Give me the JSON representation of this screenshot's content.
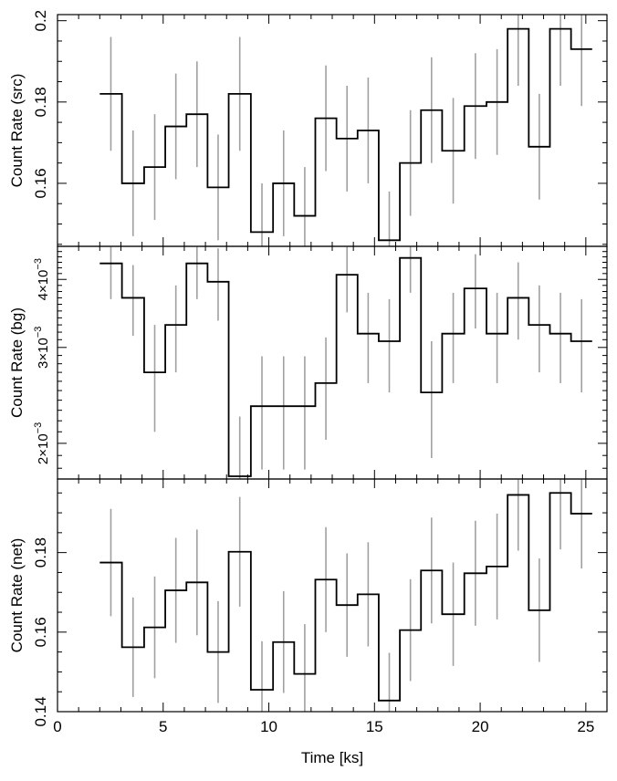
{
  "chart_data": [
    {
      "type": "step",
      "ylabel": "Count Rate (src)",
      "ylim": [
        0.1445,
        0.2015
      ],
      "yticks": [
        0.16,
        0.18,
        0.2
      ],
      "ytick_labels": [
        "0.16",
        "0.18",
        "0.2"
      ],
      "yminor_step": 0.005,
      "bin_edges": [
        2.0,
        3.05,
        4.1,
        5.1,
        6.1,
        7.1,
        8.1,
        9.15,
        10.2,
        11.2,
        12.2,
        13.2,
        14.2,
        15.2,
        16.2,
        17.2,
        18.2,
        19.25,
        20.3,
        21.3,
        22.3,
        23.3,
        24.3,
        25.3
      ],
      "values": [
        0.182,
        0.16,
        0.164,
        0.174,
        0.177,
        0.159,
        0.182,
        0.148,
        0.16,
        0.152,
        0.176,
        0.171,
        0.173,
        0.146,
        0.165,
        0.178,
        0.168,
        0.179,
        0.18,
        0.198,
        0.169,
        0.198,
        0.193
      ],
      "errors": [
        0.014,
        0.013,
        0.013,
        0.013,
        0.013,
        0.013,
        0.014,
        0.012,
        0.013,
        0.012,
        0.013,
        0.013,
        0.013,
        0.012,
        0.013,
        0.013,
        0.013,
        0.013,
        0.013,
        0.014,
        0.013,
        0.014,
        0.014
      ],
      "series_color": "#000000",
      "error_color": "#a0a0a0"
    },
    {
      "type": "step",
      "ylabel": "Count Rate (bg)",
      "scale": "log",
      "ylim": [
        0.00172,
        0.0046
      ],
      "yticks": [
        0.002,
        0.003,
        0.004
      ],
      "ytick_labels": [
        {
          "mantissa": "2",
          "times": "×",
          "base": "10",
          "exponent": "−3"
        },
        {
          "mantissa": "3",
          "times": "×",
          "base": "10",
          "exponent": "−3"
        },
        {
          "mantissa": "4",
          "times": "×",
          "base": "10",
          "exponent": "−3"
        }
      ],
      "yminor": [
        0.0018,
        0.0019,
        0.0021,
        0.0022,
        0.0023,
        0.0024,
        0.0025,
        0.0026,
        0.0027,
        0.0028,
        0.0029,
        0.0031,
        0.0032,
        0.0033,
        0.0034,
        0.0035,
        0.0036,
        0.0037,
        0.0038,
        0.0039,
        0.0041,
        0.0042,
        0.0043,
        0.0044,
        0.0045
      ],
      "bin_edges": [
        2.0,
        3.05,
        4.1,
        5.1,
        6.1,
        7.1,
        8.1,
        9.15,
        10.2,
        11.2,
        12.2,
        13.2,
        14.2,
        15.2,
        16.2,
        17.2,
        18.2,
        19.25,
        20.3,
        21.3,
        22.3,
        23.3,
        24.3,
        25.3
      ],
      "values": [
        0.00428,
        0.0037,
        0.0027,
        0.0033,
        0.00428,
        0.00396,
        0.00174,
        0.00234,
        0.00234,
        0.00234,
        0.00258,
        0.00408,
        0.00318,
        0.00308,
        0.00438,
        0.00248,
        0.00318,
        0.00385,
        0.00318,
        0.0037,
        0.0033,
        0.00318,
        0.00308
      ],
      "errors": [
        0.0006,
        0.00055,
        0.0006,
        0.0006,
        0.0006,
        0.0006,
        0.0005,
        0.00055,
        0.00055,
        0.00055,
        0.00055,
        0.0006,
        0.0006,
        0.0006,
        0.0006,
        0.0006,
        0.0006,
        0.0006,
        0.0006,
        0.0006,
        0.0006,
        0.0006,
        0.0006
      ],
      "series_color": "#000000",
      "error_color": "#a0a0a0"
    },
    {
      "type": "step",
      "ylabel": "Count Rate (net)",
      "xlabel": "Time [ks]",
      "ylim": [
        0.14,
        0.1985
      ],
      "yticks": [
        0.14,
        0.16,
        0.18
      ],
      "ytick_labels": [
        "0.14",
        "0.16",
        "0.18"
      ],
      "yminor_step": 0.005,
      "xlim": [
        0,
        26
      ],
      "xticks": [
        0,
        5,
        10,
        15,
        20,
        25
      ],
      "xtick_labels": [
        "0",
        "5",
        "10",
        "15",
        "20",
        "25"
      ],
      "xminor_step": 1,
      "bin_edges": [
        2.0,
        3.05,
        4.1,
        5.1,
        6.1,
        7.1,
        8.1,
        9.15,
        10.2,
        11.2,
        12.2,
        13.2,
        14.2,
        15.2,
        16.2,
        17.2,
        18.2,
        19.25,
        20.3,
        21.3,
        22.3,
        23.3,
        24.3,
        25.3
      ],
      "values": [
        0.1775,
        0.1562,
        0.1612,
        0.1705,
        0.1725,
        0.155,
        0.1802,
        0.1455,
        0.1575,
        0.1495,
        0.1732,
        0.1668,
        0.1695,
        0.1428,
        0.1605,
        0.1755,
        0.1645,
        0.1748,
        0.1765,
        0.1945,
        0.1655,
        0.195,
        0.1898
      ],
      "errors": [
        0.0135,
        0.0125,
        0.0128,
        0.0132,
        0.0133,
        0.0128,
        0.0138,
        0.0122,
        0.0128,
        0.0125,
        0.0132,
        0.013,
        0.0131,
        0.012,
        0.0128,
        0.0133,
        0.013,
        0.0132,
        0.0133,
        0.014,
        0.013,
        0.0142,
        0.0138
      ],
      "series_color": "#000000",
      "error_color": "#a0a0a0"
    }
  ]
}
